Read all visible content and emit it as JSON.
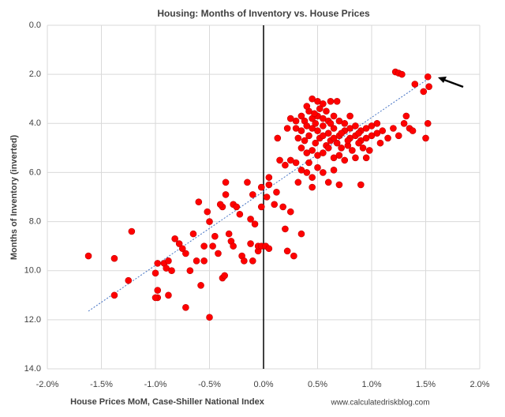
{
  "chart_data": {
    "type": "scatter",
    "title": "Housing: Months of Inventory vs. House Prices",
    "x_label": "House Prices MoM, Case-Shiller National Index",
    "y_label": "Months of Inventory (inverted)",
    "source": "www.calculatedriskblog.com",
    "color": "#ff0000",
    "grid": true,
    "y_inverted": true,
    "xlim": [
      -2.0,
      2.0
    ],
    "ylim": [
      0.0,
      14.0
    ],
    "xticks": [
      {
        "value": -2.0,
        "label": "-2.0%"
      },
      {
        "value": -1.5,
        "label": "-1.5%"
      },
      {
        "value": -1.0,
        "label": "-1.0%"
      },
      {
        "value": -0.5,
        "label": "-0.5%"
      },
      {
        "value": 0.0,
        "label": "0.0%"
      },
      {
        "value": 0.5,
        "label": "0.5%"
      },
      {
        "value": 1.0,
        "label": "1.0%"
      },
      {
        "value": 1.5,
        "label": "1.5%"
      },
      {
        "value": 2.0,
        "label": "2.0%"
      }
    ],
    "yticks": [
      {
        "value": 0,
        "label": "0.0"
      },
      {
        "value": 2,
        "label": "2.0"
      },
      {
        "value": 4,
        "label": "4.0"
      },
      {
        "value": 6,
        "label": "6.0"
      },
      {
        "value": 8,
        "label": "8.0"
      },
      {
        "value": 10,
        "label": "10.0"
      },
      {
        "value": 12,
        "label": "12.0"
      },
      {
        "value": 14,
        "label": "14.0"
      }
    ],
    "trendline": {
      "color": "#4472c4",
      "x": [
        -1.62,
        1.55
      ],
      "y": [
        11.65,
        2.1
      ]
    },
    "x": [
      -1.62,
      -1.38,
      -1.38,
      -1.22,
      -1.25,
      -1.0,
      -0.98,
      -0.98,
      -0.98,
      -1.0,
      -0.92,
      -0.9,
      -0.88,
      -0.88,
      -0.85,
      -0.82,
      -0.78,
      -0.75,
      -0.72,
      -0.72,
      -0.68,
      -0.65,
      -0.62,
      -0.6,
      -0.58,
      -0.55,
      -0.5,
      -0.5,
      -0.52,
      -0.47,
      -0.45,
      -0.42,
      -0.38,
      -0.36,
      -0.38,
      -0.32,
      -0.3,
      -0.28,
      -0.25,
      -0.22,
      -0.2,
      -0.18,
      -0.12,
      -0.08,
      -0.05,
      -0.02,
      -0.1,
      -0.35,
      -0.35,
      -0.15,
      -0.12,
      -0.1,
      -0.05,
      -0.02,
      -0.55,
      -0.4,
      -0.28,
      0.05,
      0.03,
      -0.02,
      0.02,
      0.05,
      0.1,
      0.12,
      0.15,
      0.18,
      0.2,
      0.22,
      0.25,
      0.28,
      0.32,
      0.35,
      0.4,
      0.45,
      0.45,
      0.55,
      0.6,
      0.7,
      0.9,
      0.2,
      0.3,
      0.35,
      0.13,
      0.05,
      0.25,
      0.45,
      0.5,
      0.55,
      0.62,
      0.68,
      0.52,
      0.58,
      0.42,
      0.35,
      0.3,
      0.38,
      0.45,
      0.5,
      0.55,
      0.6,
      0.65,
      0.7,
      0.75,
      0.8,
      0.85,
      0.9,
      0.95,
      1.0,
      0.3,
      0.35,
      0.4,
      0.45,
      0.5,
      0.55,
      0.6,
      0.65,
      0.7,
      0.75,
      0.8,
      0.85,
      0.9,
      0.95,
      1.0,
      1.05,
      0.32,
      0.38,
      0.42,
      0.48,
      0.52,
      0.58,
      0.62,
      0.68,
      0.72,
      0.78,
      0.82,
      0.88,
      0.92,
      0.98,
      0.35,
      0.4,
      0.45,
      0.5,
      0.55,
      0.6,
      0.65,
      0.7,
      0.75,
      0.85,
      0.42,
      0.22,
      0.25,
      0.55,
      0.65,
      0.72,
      0.78,
      0.88,
      0.48,
      0.62,
      0.4,
      0.47,
      1.08,
      0.95,
      0.8,
      0.5,
      0.65,
      1.22,
      1.25,
      1.28,
      1.4,
      1.48,
      1.52,
      1.53,
      1.52,
      1.5,
      1.3,
      1.32,
      1.35,
      1.38,
      1.2,
      1.25,
      1.1,
      1.15,
      1.05
    ],
    "y": [
      9.4,
      9.5,
      11.0,
      8.4,
      10.4,
      10.1,
      9.7,
      10.8,
      11.1,
      11.1,
      9.7,
      9.9,
      9.6,
      11.0,
      10.0,
      8.7,
      8.9,
      9.1,
      9.3,
      11.5,
      10.0,
      8.5,
      9.6,
      7.2,
      10.6,
      9.6,
      8.0,
      11.9,
      7.6,
      9.0,
      8.6,
      9.3,
      10.3,
      10.2,
      7.4,
      8.5,
      8.8,
      7.3,
      7.4,
      7.7,
      9.4,
      9.6,
      7.9,
      8.1,
      9.2,
      7.4,
      6.9,
      6.4,
      6.9,
      6.4,
      8.9,
      9.6,
      9.0,
      9.0,
      9.0,
      7.3,
      9.0,
      6.5,
      7.0,
      6.6,
      9.0,
      9.1,
      7.3,
      6.8,
      5.5,
      7.4,
      8.3,
      9.2,
      7.6,
      9.4,
      6.4,
      8.5,
      6.0,
      6.2,
      6.6,
      6.0,
      6.4,
      6.5,
      6.5,
      5.7,
      5.6,
      5.9,
      4.6,
      6.2,
      5.5,
      3.0,
      3.1,
      3.2,
      3.1,
      3.1,
      3.4,
      3.5,
      3.5,
      3.7,
      3.9,
      3.9,
      3.8,
      3.7,
      3.8,
      3.9,
      3.7,
      3.9,
      4.0,
      4.2,
      4.1,
      4.3,
      4.2,
      4.1,
      4.2,
      4.3,
      4.1,
      4.2,
      4.3,
      4.1,
      4.4,
      4.2,
      4.5,
      4.3,
      4.6,
      4.5,
      4.7,
      4.6,
      4.5,
      4.4,
      4.6,
      4.7,
      4.5,
      4.8,
      4.6,
      4.9,
      4.7,
      4.8,
      5.0,
      4.9,
      5.1,
      4.8,
      5.0,
      5.1,
      5.0,
      5.2,
      5.1,
      5.3,
      5.2,
      5.0,
      5.4,
      5.3,
      5.5,
      5.4,
      5.6,
      4.2,
      3.8,
      4.5,
      4.6,
      4.4,
      4.7,
      4.4,
      4.0,
      4.0,
      3.3,
      3.6,
      4.8,
      5.4,
      3.7,
      5.8,
      5.9,
      1.9,
      1.95,
      2.0,
      2.4,
      2.7,
      2.1,
      2.5,
      4.0,
      4.6,
      4.0,
      3.7,
      4.2,
      4.3,
      4.2,
      4.5,
      4.3,
      4.6,
      4.0
    ]
  }
}
